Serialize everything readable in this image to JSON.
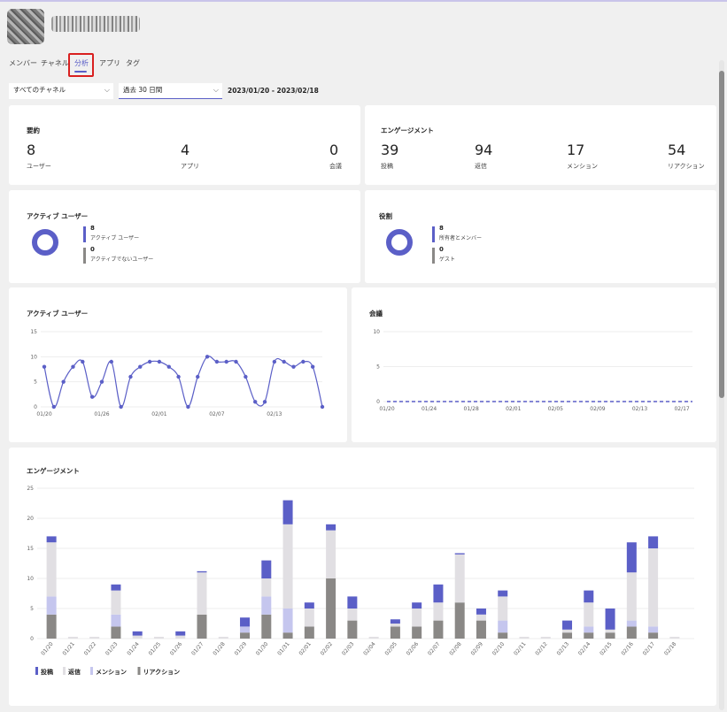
{
  "tabs": [
    {
      "label": "メンバー"
    },
    {
      "label": "チャネル"
    },
    {
      "label": "分析"
    },
    {
      "label": "アプリ"
    },
    {
      "label": "タグ"
    }
  ],
  "active_tab": "分析",
  "filters": {
    "channel": "すべてのチャネル",
    "period": "過去 30 日間",
    "date_range": "2023/01/20 - 2023/02/18"
  },
  "summary": {
    "title": "要約",
    "metrics": [
      {
        "value": "8",
        "label": "ユーザー"
      },
      {
        "value": "4",
        "label": "アプリ"
      },
      {
        "value": "0",
        "label": "会議"
      }
    ]
  },
  "engagement_summary": {
    "title": "エンゲージメント",
    "metrics": [
      {
        "value": "39",
        "label": "投稿"
      },
      {
        "value": "94",
        "label": "返信"
      },
      {
        "value": "17",
        "label": "メンション"
      },
      {
        "value": "54",
        "label": "リアクション"
      }
    ]
  },
  "active_users_card": {
    "title": "アクティブ ユーザー",
    "items": [
      {
        "value": "8",
        "label": "アクティブ ユーザー",
        "color": "#5b5fc7"
      },
      {
        "value": "0",
        "label": "アクティブでないユーザー",
        "color": "#8a8886"
      }
    ]
  },
  "roles_card": {
    "title": "役割",
    "items": [
      {
        "value": "8",
        "label": "所有者とメンバー",
        "color": "#5b5fc7"
      },
      {
        "value": "0",
        "label": "ゲスト",
        "color": "#8a8886"
      }
    ]
  },
  "chart_data": [
    {
      "type": "line",
      "title": "アクティブ ユーザー",
      "ylim": [
        0,
        15
      ],
      "yticks": [
        0,
        5,
        10,
        15
      ],
      "x": [
        "01/20",
        "01/21",
        "01/22",
        "01/23",
        "01/24",
        "01/25",
        "01/26",
        "01/27",
        "01/28",
        "01/29",
        "01/30",
        "01/31",
        "02/01",
        "02/02",
        "02/03",
        "02/04",
        "02/05",
        "02/06",
        "02/07",
        "02/08",
        "02/09",
        "02/10",
        "02/11",
        "02/12",
        "02/13",
        "02/14",
        "02/15",
        "02/16",
        "02/17",
        "02/18"
      ],
      "xtick_labels": [
        "01/20",
        "01/26",
        "02/01",
        "02/07",
        "02/13"
      ],
      "series": [
        {
          "values": [
            8,
            0,
            5,
            8,
            9,
            2,
            5,
            9,
            0,
            6,
            8,
            9,
            9,
            8,
            6,
            0,
            6,
            10,
            9,
            9,
            9,
            6,
            1,
            1,
            9,
            9,
            8,
            9,
            8,
            0
          ],
          "color": "#5b5fc7"
        }
      ],
      "grid": true
    },
    {
      "type": "line",
      "title": "会議",
      "ylim": [
        0,
        10
      ],
      "yticks": [
        0,
        5,
        10
      ],
      "x": [
        "01/20",
        "01/21",
        "01/22",
        "01/23",
        "01/24",
        "01/25",
        "01/26",
        "01/27",
        "01/28",
        "01/29",
        "01/30",
        "01/31",
        "02/01",
        "02/02",
        "02/03",
        "02/04",
        "02/05",
        "02/06",
        "02/07",
        "02/08",
        "02/09",
        "02/10",
        "02/11",
        "02/12",
        "02/13",
        "02/14",
        "02/15",
        "02/16",
        "02/17",
        "02/18"
      ],
      "xtick_labels": [
        "01/20",
        "01/24",
        "01/28",
        "02/01",
        "02/05",
        "02/09",
        "02/13",
        "02/17"
      ],
      "series": [
        {
          "values": [
            0,
            0,
            0,
            0,
            0,
            0,
            0,
            0,
            0,
            0,
            0,
            0,
            0,
            0,
            0,
            0,
            0,
            0,
            0,
            0,
            0,
            0,
            0,
            0,
            0,
            0,
            0,
            0,
            0,
            0
          ],
          "color": "#5b5fc7",
          "dashed": true
        }
      ],
      "grid": true
    },
    {
      "type": "bar",
      "stacked": true,
      "title": "エンゲージメント",
      "ylim": [
        0,
        25
      ],
      "yticks": [
        0,
        5,
        10,
        15,
        20,
        25
      ],
      "categories": [
        "01/20",
        "01/21",
        "01/22",
        "01/23",
        "01/24",
        "01/25",
        "01/26",
        "01/27",
        "01/28",
        "01/29",
        "01/30",
        "01/31",
        "02/01",
        "02/02",
        "02/03",
        "02/04",
        "02/05",
        "02/06",
        "02/07",
        "02/08",
        "02/09",
        "02/10",
        "02/11",
        "02/12",
        "02/13",
        "02/14",
        "02/15",
        "02/16",
        "02/17",
        "02/18"
      ],
      "series": [
        {
          "name": "リアクション",
          "color": "#8a8886",
          "values": [
            4,
            0,
            0,
            2,
            0,
            0,
            0,
            4,
            0,
            1,
            4,
            1,
            2,
            10,
            3,
            0,
            2,
            2,
            3,
            6,
            3,
            1,
            0,
            0,
            1,
            1,
            1,
            2,
            1,
            0
          ]
        },
        {
          "name": "メンション",
          "color": "#c5c6ee",
          "values": [
            3,
            0,
            0,
            2,
            0,
            0,
            0,
            0,
            0,
            1,
            3,
            4,
            0,
            0,
            0,
            0,
            0,
            0,
            0,
            0,
            0,
            2,
            0,
            0,
            0,
            1,
            0,
            1,
            1,
            0
          ]
        },
        {
          "name": "返信",
          "color": "#e1dfe3",
          "values": [
            9,
            0.3,
            0.3,
            4,
            0.5,
            0.3,
            0.5,
            7,
            0.3,
            0,
            3,
            14,
            3,
            8,
            2,
            0.3,
            0.5,
            3,
            3,
            8,
            1,
            4,
            0.3,
            0.3,
            0.5,
            4,
            0.5,
            8,
            13,
            0.3
          ]
        },
        {
          "name": "投稿",
          "color": "#5b5fc7",
          "values": [
            1,
            0,
            0,
            1,
            0.7,
            0,
            0.7,
            0.2,
            0,
            1.5,
            3,
            4,
            1,
            1,
            2,
            0,
            0.7,
            1,
            3,
            0.2,
            1,
            1,
            0,
            0,
            1.5,
            2,
            3.5,
            5,
            2,
            0
          ]
        }
      ],
      "legend": "bottom-left",
      "legend_order": [
        "投稿",
        "返信",
        "メンション",
        "リアクション"
      ],
      "grid": true
    }
  ]
}
